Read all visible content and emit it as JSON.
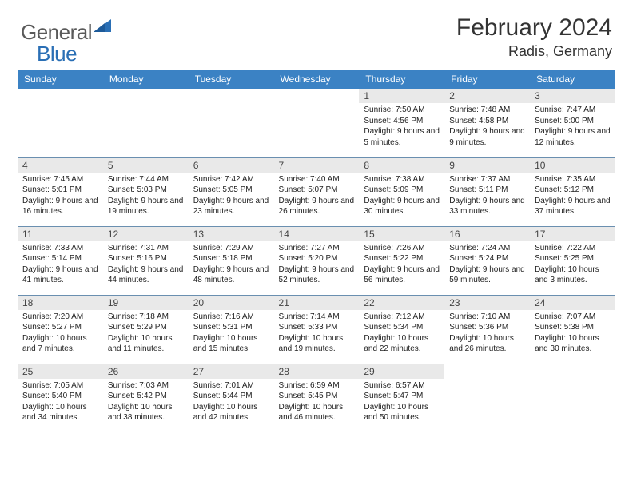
{
  "brand": {
    "text1": "General",
    "text2": "Blue"
  },
  "title": "February 2024",
  "location": "Radis, Germany",
  "colors": {
    "header_bg": "#3b82c4",
    "header_text": "#ffffff",
    "row_divider": "#6a8fb0",
    "daynum_bg": "#e9e9e9",
    "logo_blue": "#2a6fb5",
    "logo_gray": "#5a5a5a"
  },
  "weekdays": [
    "Sunday",
    "Monday",
    "Tuesday",
    "Wednesday",
    "Thursday",
    "Friday",
    "Saturday"
  ],
  "layout": {
    "first_weekday_index": 4,
    "days_in_month": 29,
    "rows": 5,
    "cols": 7
  },
  "days": {
    "1": {
      "sunrise": "7:50 AM",
      "sunset": "4:56 PM",
      "daylight": "9 hours and 5 minutes."
    },
    "2": {
      "sunrise": "7:48 AM",
      "sunset": "4:58 PM",
      "daylight": "9 hours and 9 minutes."
    },
    "3": {
      "sunrise": "7:47 AM",
      "sunset": "5:00 PM",
      "daylight": "9 hours and 12 minutes."
    },
    "4": {
      "sunrise": "7:45 AM",
      "sunset": "5:01 PM",
      "daylight": "9 hours and 16 minutes."
    },
    "5": {
      "sunrise": "7:44 AM",
      "sunset": "5:03 PM",
      "daylight": "9 hours and 19 minutes."
    },
    "6": {
      "sunrise": "7:42 AM",
      "sunset": "5:05 PM",
      "daylight": "9 hours and 23 minutes."
    },
    "7": {
      "sunrise": "7:40 AM",
      "sunset": "5:07 PM",
      "daylight": "9 hours and 26 minutes."
    },
    "8": {
      "sunrise": "7:38 AM",
      "sunset": "5:09 PM",
      "daylight": "9 hours and 30 minutes."
    },
    "9": {
      "sunrise": "7:37 AM",
      "sunset": "5:11 PM",
      "daylight": "9 hours and 33 minutes."
    },
    "10": {
      "sunrise": "7:35 AM",
      "sunset": "5:12 PM",
      "daylight": "9 hours and 37 minutes."
    },
    "11": {
      "sunrise": "7:33 AM",
      "sunset": "5:14 PM",
      "daylight": "9 hours and 41 minutes."
    },
    "12": {
      "sunrise": "7:31 AM",
      "sunset": "5:16 PM",
      "daylight": "9 hours and 44 minutes."
    },
    "13": {
      "sunrise": "7:29 AM",
      "sunset": "5:18 PM",
      "daylight": "9 hours and 48 minutes."
    },
    "14": {
      "sunrise": "7:27 AM",
      "sunset": "5:20 PM",
      "daylight": "9 hours and 52 minutes."
    },
    "15": {
      "sunrise": "7:26 AM",
      "sunset": "5:22 PM",
      "daylight": "9 hours and 56 minutes."
    },
    "16": {
      "sunrise": "7:24 AM",
      "sunset": "5:24 PM",
      "daylight": "9 hours and 59 minutes."
    },
    "17": {
      "sunrise": "7:22 AM",
      "sunset": "5:25 PM",
      "daylight": "10 hours and 3 minutes."
    },
    "18": {
      "sunrise": "7:20 AM",
      "sunset": "5:27 PM",
      "daylight": "10 hours and 7 minutes."
    },
    "19": {
      "sunrise": "7:18 AM",
      "sunset": "5:29 PM",
      "daylight": "10 hours and 11 minutes."
    },
    "20": {
      "sunrise": "7:16 AM",
      "sunset": "5:31 PM",
      "daylight": "10 hours and 15 minutes."
    },
    "21": {
      "sunrise": "7:14 AM",
      "sunset": "5:33 PM",
      "daylight": "10 hours and 19 minutes."
    },
    "22": {
      "sunrise": "7:12 AM",
      "sunset": "5:34 PM",
      "daylight": "10 hours and 22 minutes."
    },
    "23": {
      "sunrise": "7:10 AM",
      "sunset": "5:36 PM",
      "daylight": "10 hours and 26 minutes."
    },
    "24": {
      "sunrise": "7:07 AM",
      "sunset": "5:38 PM",
      "daylight": "10 hours and 30 minutes."
    },
    "25": {
      "sunrise": "7:05 AM",
      "sunset": "5:40 PM",
      "daylight": "10 hours and 34 minutes."
    },
    "26": {
      "sunrise": "7:03 AM",
      "sunset": "5:42 PM",
      "daylight": "10 hours and 38 minutes."
    },
    "27": {
      "sunrise": "7:01 AM",
      "sunset": "5:44 PM",
      "daylight": "10 hours and 42 minutes."
    },
    "28": {
      "sunrise": "6:59 AM",
      "sunset": "5:45 PM",
      "daylight": "10 hours and 46 minutes."
    },
    "29": {
      "sunrise": "6:57 AM",
      "sunset": "5:47 PM",
      "daylight": "10 hours and 50 minutes."
    }
  },
  "labels": {
    "sunrise_prefix": "Sunrise: ",
    "sunset_prefix": "Sunset: ",
    "daylight_prefix": "Daylight: "
  }
}
